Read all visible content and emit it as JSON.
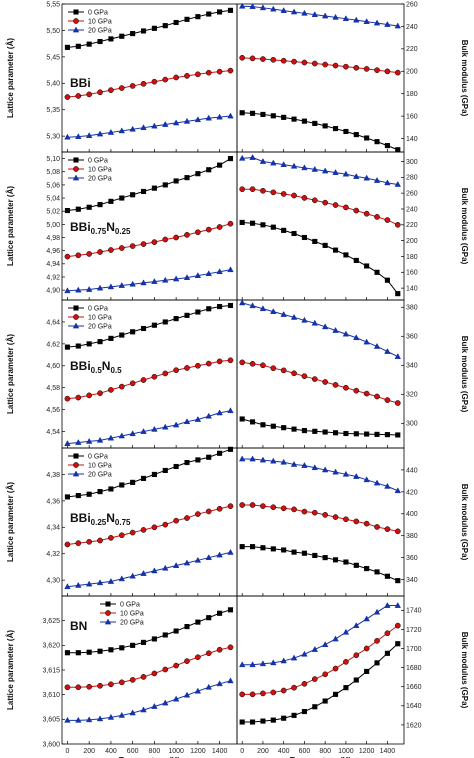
{
  "chart_data": {
    "type": "line",
    "x_label": "Temperature (K)",
    "left_ylabel": "Lattice parameter (Å)",
    "right_ylabel": "Bulk modulus (GPa)",
    "x_ticks": [
      "0",
      "200",
      "400",
      "600",
      "800",
      "1000",
      "1200",
      "1400"
    ],
    "xlim": [
      -50,
      1560
    ],
    "x": [
      0,
      100,
      200,
      300,
      400,
      500,
      600,
      700,
      800,
      900,
      1000,
      1100,
      1200,
      1300,
      1400,
      1500
    ],
    "colors": [
      "#000000",
      "#cc1111",
      "#1533a8"
    ],
    "markers": [
      "square",
      "circle",
      "triangle"
    ],
    "rows": [
      {
        "label_main": "BBi",
        "label_sub1": "",
        "label_mid": "",
        "label_sub2": "",
        "lattice": {
          "ylim": [
            5.27,
            5.55
          ],
          "ticks": [
            5.3,
            5.35,
            5.4,
            5.45,
            5.5,
            5.55
          ],
          "tick_labels": [
            "5,30",
            "5,35",
            "5,40",
            "5,45",
            "5,50",
            "5,55"
          ],
          "legend": "top-left",
          "series": [
            {
              "name": "0 GPa",
              "values": [
                5.468,
                5.47,
                5.474,
                5.479,
                5.484,
                5.489,
                5.494,
                5.499,
                5.504,
                5.509,
                5.515,
                5.521,
                5.526,
                5.531,
                5.535,
                5.538
              ]
            },
            {
              "name": "10 GPa",
              "values": [
                5.374,
                5.376,
                5.379,
                5.383,
                5.387,
                5.391,
                5.395,
                5.399,
                5.403,
                5.407,
                5.411,
                5.414,
                5.417,
                5.42,
                5.422,
                5.424
              ]
            },
            {
              "name": "20 GPa",
              "values": [
                5.298,
                5.299,
                5.301,
                5.304,
                5.307,
                5.31,
                5.313,
                5.316,
                5.319,
                5.322,
                5.325,
                5.328,
                5.331,
                5.334,
                5.336,
                5.338
              ]
            }
          ]
        },
        "bulk": {
          "ylim": [
            128,
            260
          ],
          "ticks": [
            140,
            160,
            180,
            200,
            220,
            240,
            260
          ],
          "tick_labels": [
            "140",
            "160",
            "180",
            "200",
            "220",
            "240",
            "260"
          ],
          "series": [
            {
              "name": "0 GPa",
              "values": [
                163,
                162.5,
                161.5,
                160.3,
                158.9,
                157.3,
                155.5,
                153.5,
                151.3,
                148.9,
                146.3,
                143.5,
                140.5,
                137.2,
                133.7,
                130
              ]
            },
            {
              "name": "10 GPa",
              "values": [
                212,
                211.5,
                210.9,
                210.2,
                209.4,
                208.6,
                207.8,
                206.9,
                206,
                205.1,
                204.1,
                203.1,
                202.1,
                201,
                199.9,
                198.8
              ]
            },
            {
              "name": "20 GPa",
              "values": [
                258,
                257.7,
                256.6,
                255.4,
                254.1,
                252.9,
                251.7,
                250.5,
                249.3,
                248.1,
                246.9,
                245.6,
                244.3,
                243,
                241.7,
                240.4
              ]
            }
          ]
        }
      },
      {
        "label_main": "BBi",
        "label_sub1": "0.75",
        "label_mid": "N",
        "label_sub2": "0.25",
        "lattice": {
          "ylim": [
            4.885,
            5.11
          ],
          "ticks": [
            4.9,
            4.92,
            4.94,
            4.96,
            4.98,
            5.0,
            5.02,
            5.04,
            5.06,
            5.08,
            5.1
          ],
          "tick_labels": [
            "4,90",
            "4,92",
            "4,94",
            "4,96",
            "4,98",
            "5,00",
            "5,02",
            "5,04",
            "5,06",
            "5,08",
            "5,10"
          ],
          "legend": "top-left",
          "series": [
            {
              "name": "0 GPa",
              "values": [
                5.021,
                5.023,
                5.026,
                5.03,
                5.035,
                5.04,
                5.045,
                5.05,
                5.055,
                5.06,
                5.066,
                5.071,
                5.077,
                5.083,
                5.09,
                5.1
              ]
            },
            {
              "name": "10 GPa",
              "values": [
                4.951,
                4.953,
                4.955,
                4.958,
                4.961,
                4.964,
                4.967,
                4.97,
                4.973,
                4.977,
                4.98,
                4.984,
                4.988,
                4.992,
                4.996,
                5.001
              ]
            },
            {
              "name": "20 GPa",
              "values": [
                4.899,
                4.9,
                4.901,
                4.903,
                4.905,
                4.907,
                4.909,
                4.911,
                4.913,
                4.915,
                4.917,
                4.919,
                4.922,
                4.925,
                4.928,
                4.931
              ]
            }
          ]
        },
        "bulk": {
          "ylim": [
            125,
            312
          ],
          "ticks": [
            140,
            160,
            180,
            200,
            220,
            240,
            260,
            280,
            300
          ],
          "tick_labels": [
            "140",
            "160",
            "180",
            "200",
            "220",
            "240",
            "260",
            "280",
            "300"
          ],
          "series": [
            {
              "name": "0 GPa",
              "values": [
                223,
                222,
                220,
                217,
                213,
                209,
                204,
                199,
                194,
                188,
                182,
                175,
                168,
                160,
                150,
                133
              ]
            },
            {
              "name": "10 GPa",
              "values": [
                265,
                265,
                263,
                261,
                259,
                257,
                254,
                251,
                248,
                245,
                242,
                238,
                234,
                230,
                226,
                220
              ]
            },
            {
              "name": "20 GPa",
              "values": [
                304,
                305,
                300,
                298,
                296,
                294,
                292,
                290,
                288,
                286,
                284,
                281,
                279,
                276,
                273,
                271
              ]
            }
          ]
        }
      },
      {
        "label_main": "BBi",
        "label_sub1": "0.5",
        "label_mid": "N",
        "label_sub2": "0.5",
        "lattice": {
          "ylim": [
            4.525,
            4.66
          ],
          "ticks": [
            4.54,
            4.56,
            4.58,
            4.6,
            4.62,
            4.64
          ],
          "tick_labels": [
            "4,54",
            "4,56",
            "4,58",
            "4,60",
            "4,62",
            "4,64"
          ],
          "legend": "top-left",
          "series": [
            {
              "name": "0 GPa",
              "values": [
                4.617,
                4.618,
                4.62,
                4.622,
                4.625,
                4.628,
                4.631,
                4.634,
                4.637,
                4.64,
                4.643,
                4.646,
                4.649,
                4.652,
                4.654,
                4.655
              ]
            },
            {
              "name": "10 GPa",
              "values": [
                4.57,
                4.571,
                4.573,
                4.575,
                4.578,
                4.581,
                4.584,
                4.587,
                4.59,
                4.593,
                4.596,
                4.598,
                4.6,
                4.602,
                4.604,
                4.605
              ]
            },
            {
              "name": "20 GPa",
              "values": [
                4.529,
                4.53,
                4.531,
                4.532,
                4.534,
                4.536,
                4.538,
                4.54,
                4.542,
                4.544,
                4.546,
                4.549,
                4.551,
                4.554,
                4.557,
                4.559
              ]
            }
          ]
        },
        "bulk": {
          "ylim": [
            283,
            385
          ],
          "ticks": [
            300,
            320,
            340,
            360,
            380
          ],
          "tick_labels": [
            "300",
            "320",
            "340",
            "360",
            "380"
          ],
          "series": [
            {
              "name": "0 GPa",
              "values": [
                303,
                301,
                299,
                298,
                297,
                296,
                295,
                294.5,
                294,
                293.5,
                293,
                292.8,
                292.6,
                292.4,
                292.2,
                292
              ]
            },
            {
              "name": "10 GPa",
              "values": [
                342,
                341,
                340,
                338,
                336.5,
                334.5,
                332.5,
                330.5,
                328.5,
                326.5,
                324.5,
                322.5,
                320.5,
                318.5,
                316,
                314
              ]
            },
            {
              "name": "20 GPa",
              "values": [
                383,
                381,
                379,
                377,
                375,
                373,
                371,
                369,
                366.5,
                364,
                361.5,
                359,
                356,
                353,
                349.5,
                346
              ]
            }
          ]
        }
      },
      {
        "label_main": "BBi",
        "label_sub1": "0.25",
        "label_mid": "N",
        "label_sub2": "0.75",
        "lattice": {
          "ylim": [
            4.288,
            4.4
          ],
          "ticks": [
            4.3,
            4.32,
            4.34,
            4.36,
            4.38
          ],
          "tick_labels": [
            "4,30",
            "4,32",
            "4,34",
            "4,36",
            "4,38"
          ],
          "legend": "top-left",
          "series": [
            {
              "name": "0 GPa",
              "values": [
                4.363,
                4.364,
                4.365,
                4.367,
                4.369,
                4.372,
                4.374,
                4.377,
                4.38,
                4.383,
                4.386,
                4.389,
                4.391,
                4.393,
                4.396,
                4.399
              ]
            },
            {
              "name": "10 GPa",
              "values": [
                4.327,
                4.328,
                4.329,
                4.33,
                4.332,
                4.334,
                4.336,
                4.338,
                4.34,
                4.342,
                4.345,
                4.347,
                4.35,
                4.352,
                4.354,
                4.356
              ]
            },
            {
              "name": "20 GPa",
              "values": [
                4.295,
                4.296,
                4.297,
                4.298,
                4.299,
                4.301,
                4.303,
                4.305,
                4.307,
                4.309,
                4.311,
                4.313,
                4.315,
                4.317,
                4.319,
                4.321
              ]
            }
          ]
        },
        "bulk": {
          "ylim": [
            325,
            460
          ],
          "ticks": [
            340,
            360,
            380,
            400,
            420,
            440
          ],
          "tick_labels": [
            "340",
            "360",
            "380",
            "400",
            "420",
            "440"
          ],
          "series": [
            {
              "name": "0 GPa",
              "values": [
                370,
                370,
                369,
                368,
                367,
                365,
                364,
                362,
                360,
                358,
                356,
                353,
                350,
                347,
                343,
                339
              ]
            },
            {
              "name": "10 GPa",
              "values": [
                408,
                408,
                407,
                406,
                405,
                404,
                402,
                401,
                399,
                397,
                395,
                393,
                391,
                388,
                386,
                384
              ]
            },
            {
              "name": "20 GPa",
              "values": [
                450,
                450,
                449,
                448,
                447,
                445,
                444,
                442,
                440,
                438,
                436,
                434,
                431,
                428,
                425,
                421
              ]
            }
          ]
        }
      },
      {
        "label_main": "BN",
        "label_sub1": "",
        "label_mid": "",
        "label_sub2": "",
        "lattice": {
          "ylim": [
            3.6,
            3.63
          ],
          "ticks": [
            3.6,
            3.605,
            3.61,
            3.615,
            3.62,
            3.625
          ],
          "tick_labels": [
            "3,600",
            "3,605",
            "3,610",
            "3,615",
            "3,620",
            "3,625"
          ],
          "legend": "top-right",
          "series": [
            {
              "name": "0 GPa",
              "values": [
                3.6185,
                3.6185,
                3.6186,
                3.6188,
                3.6191,
                3.6195,
                3.62,
                3.6206,
                3.6213,
                3.6221,
                3.6229,
                3.6238,
                3.6247,
                3.6256,
                3.6265,
                3.6272
              ]
            },
            {
              "name": "10 GPa",
              "values": [
                3.6115,
                3.6115,
                3.6116,
                3.6118,
                3.6121,
                3.6125,
                3.613,
                3.6136,
                3.6143,
                3.6151,
                3.6159,
                3.6168,
                3.6176,
                3.6184,
                3.6191,
                3.6196
              ]
            },
            {
              "name": "20 GPa",
              "values": [
                3.6048,
                3.6048,
                3.6049,
                3.6051,
                3.6054,
                3.6058,
                3.6063,
                3.6069,
                3.6076,
                3.6083,
                3.6091,
                3.6099,
                3.6107,
                3.6115,
                3.6122,
                3.6128
              ]
            }
          ]
        },
        "bulk": {
          "ylim": [
            1600,
            1755
          ],
          "ticks": [
            1620,
            1640,
            1660,
            1680,
            1700,
            1720,
            1740
          ],
          "tick_labels": [
            "1620",
            "1640",
            "1660",
            "1680",
            "1700",
            "1720",
            "1740"
          ],
          "series": [
            {
              "name": "0 GPa",
              "values": [
                1623,
                1623,
                1624,
                1625,
                1627,
                1630,
                1634,
                1639,
                1645,
                1652,
                1659,
                1667,
                1676,
                1685,
                1695,
                1705
              ]
            },
            {
              "name": "10 GPa",
              "values": [
                1652,
                1652,
                1653,
                1654,
                1656,
                1659,
                1663,
                1668,
                1673,
                1679,
                1686,
                1693,
                1700,
                1708,
                1716,
                1724
              ]
            },
            {
              "name": "20 GPa",
              "values": [
                1683,
                1683,
                1684,
                1685,
                1687,
                1690,
                1694,
                1699,
                1704,
                1710,
                1717,
                1724,
                1731,
                1738,
                1745,
                1745
              ]
            }
          ]
        }
      }
    ]
  }
}
